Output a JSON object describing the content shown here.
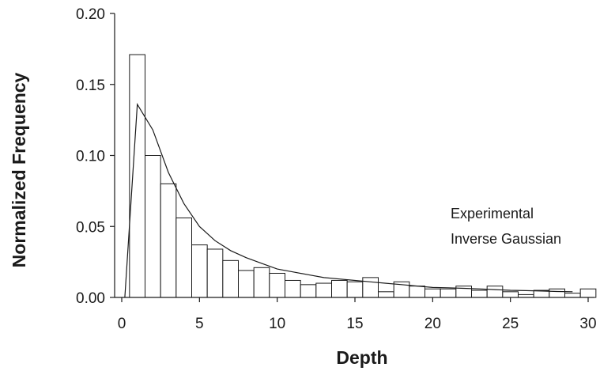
{
  "chart_data": {
    "type": "bar",
    "xlabel": "Depth",
    "ylabel": "Normalized Frequency",
    "xlim": [
      0,
      30
    ],
    "ylim": [
      0,
      0.2
    ],
    "xticks": [
      0,
      5,
      10,
      15,
      20,
      25,
      30
    ],
    "yticks": [
      "0.00",
      "0.05",
      "0.10",
      "0.15",
      "0.20"
    ],
    "grid": false,
    "legend_position": "right",
    "series": [
      {
        "name": "Experimental",
        "kind": "bar",
        "bin_width": 1,
        "x": [
          1,
          2,
          3,
          4,
          5,
          6,
          7,
          8,
          9,
          10,
          11,
          12,
          13,
          14,
          15,
          16,
          17,
          18,
          19,
          20,
          21,
          22,
          23,
          24,
          25,
          26,
          27,
          28,
          29,
          30
        ],
        "values": [
          0.171,
          0.1,
          0.08,
          0.056,
          0.037,
          0.034,
          0.026,
          0.019,
          0.021,
          0.017,
          0.012,
          0.009,
          0.01,
          0.012,
          0.011,
          0.014,
          0.004,
          0.011,
          0.008,
          0.006,
          0.006,
          0.008,
          0.005,
          0.008,
          0.004,
          0.002,
          0.005,
          0.006,
          0.003,
          0.006
        ]
      },
      {
        "name": "Inverse Gaussian",
        "kind": "line",
        "x": [
          0.2,
          1,
          2,
          3,
          4,
          5,
          6,
          7,
          8,
          9,
          10,
          11,
          12,
          13,
          14,
          15,
          16,
          17,
          18,
          19,
          20,
          21,
          22,
          23,
          24,
          25,
          26,
          27,
          28,
          29
        ],
        "values": [
          0.0,
          0.136,
          0.118,
          0.088,
          0.066,
          0.05,
          0.04,
          0.033,
          0.028,
          0.024,
          0.02,
          0.018,
          0.016,
          0.014,
          0.013,
          0.012,
          0.011,
          0.01,
          0.009,
          0.008,
          0.007,
          0.0068,
          0.0064,
          0.006,
          0.0055,
          0.005,
          0.0048,
          0.0045,
          0.0042,
          0.004
        ]
      }
    ]
  }
}
